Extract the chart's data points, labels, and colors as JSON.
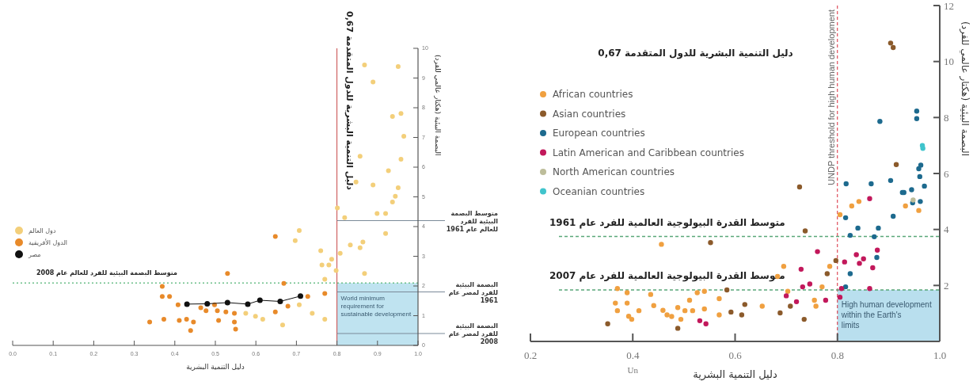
{
  "chart_data": [
    {
      "type": "scatter",
      "title": "0,67 دليل التنمية البشرية للدول المتقدمة",
      "xlabel": "دليل التنمية البشرية",
      "ylabel": "البصمة البيئية (هكتار عالمي للفرد)",
      "xlim": [
        0,
        1
      ],
      "ylim": [
        0,
        10
      ],
      "xticks": [
        {
          "value": 0,
          "label": "0.0"
        },
        {
          "value": 0.1,
          "label": "0.1"
        },
        {
          "value": 0.2,
          "label": "0.2"
        },
        {
          "value": 0.3,
          "label": "0.3"
        },
        {
          "value": 0.4,
          "label": "0.4"
        },
        {
          "value": 0.5,
          "label": "0.5"
        },
        {
          "value": 0.6,
          "label": "0.6"
        },
        {
          "value": 0.7,
          "label": "0.7"
        },
        {
          "value": 0.8,
          "label": "0.8"
        },
        {
          "value": 0.9,
          "label": "0.9"
        },
        {
          "value": 1,
          "label": "1.0"
        }
      ],
      "yticks": [
        0,
        1,
        2,
        3,
        4,
        5,
        6,
        7,
        8,
        9,
        10
      ],
      "legend": "left",
      "marker": "circle",
      "series": [
        {
          "name": "دول العالم",
          "color": "#f3cf7a",
          "type": "scatter",
          "x": [
            0.868,
            0.951,
            0.889,
            0.937,
            0.958,
            0.965,
            0.857,
            0.958,
            0.927,
            0.951,
            0.944,
            0.937,
            0.889,
            0.847,
            0.899,
            0.92,
            0.92,
            0.819,
            0.801,
            0.833,
            0.857,
            0.864,
            0.808,
            0.787,
            0.763,
            0.78,
            0.798,
            0.868,
            0.707,
            0.697,
            0.76,
            0.739,
            0.666,
            0.617,
            0.599,
            0.575,
            0.707,
            0.77,
            0.77
          ],
          "values": [
            9.44,
            9.39,
            8.87,
            7.71,
            7.81,
            7.04,
            6.37,
            6.27,
            5.88,
            5.31,
            5.02,
            4.83,
            5.4,
            5.5,
            4.44,
            4.44,
            3.77,
            4.3,
            4.63,
            3.38,
            3.29,
            3.48,
            3.1,
            2.9,
            2.71,
            2.71,
            2.52,
            2.42,
            3.87,
            3.53,
            3.19,
            1.08,
            0.69,
            0.88,
            0.98,
            1.08,
            1.37,
            0.88,
            2.23
          ]
        },
        {
          "name": "الدول الأفريقية",
          "color": "#e88a2a",
          "type": "scatter",
          "x": [
            0.369,
            0.373,
            0.387,
            0.338,
            0.408,
            0.411,
            0.429,
            0.446,
            0.439,
            0.464,
            0.477,
            0.498,
            0.505,
            0.526,
            0.53,
            0.508,
            0.547,
            0.55,
            0.547,
            0.648,
            0.648,
            0.669,
            0.679,
            0.728,
            0.77,
            0.369
          ],
          "values": [
            1.65,
            0.88,
            1.65,
            0.79,
            1.37,
            0.84,
            0.88,
            0.79,
            0.5,
            1.27,
            1.17,
            1.37,
            1.17,
            1.13,
            2.42,
            0.84,
            0.79,
            0.55,
            1.08,
            1.13,
            3.67,
            2.09,
            1.32,
            1.65,
            1.75,
            1.99
          ]
        },
        {
          "name": "مصر",
          "color": "#111111",
          "type": "line",
          "x": [
            0.43,
            0.48,
            0.53,
            0.58,
            0.61,
            0.66,
            0.71
          ],
          "values": [
            1.39,
            1.4,
            1.44,
            1.39,
            1.52,
            1.48,
            1.66
          ]
        }
      ],
      "ref_lines": [
        {
          "axis": "x",
          "value": 0.8,
          "color": "#c84848",
          "line_style": "solid"
        },
        {
          "axis": "y",
          "value": 2.1,
          "label": "متوسط البصمة البيئية للفرد للعالم عام 2008",
          "color": "#6cbf8a",
          "line_style": "dotted"
        },
        {
          "axis": "y",
          "value": 4.2,
          "label": "متوسط البصمة البيئية للفرد للعالم عام 1961",
          "color": "#7a8a99",
          "line_style": "solid"
        },
        {
          "axis": "y",
          "value": 1.8,
          "label": "البصمة البيئية للفرد لمصر عام 1961",
          "color": "#7a8a99",
          "line_style": "solid"
        },
        {
          "axis": "y",
          "value": 0.4,
          "label": "البصمة البيئية للفرد لمصر عام 2008",
          "color": "#7a8a99",
          "line_style": "solid"
        }
      ],
      "bands": [
        {
          "axis": "y",
          "from": 0,
          "to": 2.1,
          "label": "World minimum requirement for sustainable development",
          "color": "#bfe3f0"
        }
      ]
    },
    {
      "type": "scatter",
      "title": "0,67 دليل التنمية البشرية للدول المتقدمة",
      "xlabel": "دليل التنمية البشرية",
      "ylabel": "البصمة البيئية (هكتار عالمي للفرد)",
      "xlim": [
        0.2,
        1
      ],
      "ylim": [
        0,
        12
      ],
      "xticks": [
        {
          "value": 0.2,
          "label": "0.2"
        },
        {
          "value": 0.4,
          "label": "0.4"
        },
        {
          "value": 0.6,
          "label": "0.6"
        },
        {
          "value": 0.8,
          "label": "0.8"
        },
        {
          "value": 1,
          "label": "1.0"
        }
      ],
      "yticks": [
        2,
        4,
        6,
        8,
        10,
        12
      ],
      "legend": "top left",
      "marker": "circle",
      "annotations": [
        "Un"
      ],
      "series": [
        {
          "name": "African countries",
          "color": "#f0a040",
          "type": "scatter",
          "x": [
            0.37,
            0.366,
            0.37,
            0.389,
            0.389,
            0.392,
            0.398,
            0.412,
            0.435,
            0.441,
            0.456,
            0.459,
            0.467,
            0.476,
            0.488,
            0.494,
            0.502,
            0.511,
            0.517,
            0.526,
            0.54,
            0.54,
            0.569,
            0.569,
            0.653,
            0.683,
            0.695,
            0.703,
            0.755,
            0.758,
            0.77,
            0.785,
            0.828,
            0.842,
            0.933,
            0.959,
            0.805
          ],
          "values": [
            1.89,
            1.37,
            1.1,
            1.74,
            1.37,
            0.9,
            0.79,
            1.1,
            1.68,
            1.28,
            3.47,
            1.11,
            0.95,
            0.89,
            1.21,
            0.79,
            1.1,
            1.47,
            1.1,
            1.74,
            1.79,
            1.16,
            1.53,
            0.95,
            1.26,
            2.32,
            2.68,
            1.79,
            1.47,
            1.26,
            1.95,
            2.68,
            4.84,
            5.0,
            4.84,
            4.68,
            4.53
          ]
        },
        {
          "name": "Asian countries",
          "color": "#8b5a2b",
          "type": "scatter",
          "x": [
            0.351,
            0.488,
            0.552,
            0.584,
            0.592,
            0.613,
            0.619,
            0.688,
            0.708,
            0.735,
            0.737,
            0.78,
            0.797,
            0.726,
            0.904,
            0.909,
            0.915
          ],
          "values": [
            0.63,
            0.47,
            3.53,
            1.84,
            1.05,
            0.95,
            1.32,
            1.02,
            1.26,
            0.79,
            3.95,
            2.42,
            2.89,
            5.52,
            10.66,
            10.5,
            6.32
          ]
        },
        {
          "name": "European countries",
          "color": "#1d6a8e",
          "type": "scatter",
          "x": [
            0.817,
            0.866,
            0.883,
            0.904,
            0.955,
            0.955,
            0.959,
            0.963,
            0.961,
            0.97,
            0.93,
            0.816,
            0.84,
            0.88,
            0.872,
            0.825,
            0.909,
            0.877,
            0.825,
            0.816,
            0.927,
            0.947,
            0.962,
            0.945
          ],
          "values": [
            5.63,
            5.63,
            7.86,
            5.75,
            8.23,
            7.96,
            6.17,
            6.3,
            5.89,
            5.55,
            5.32,
            4.42,
            4.05,
            4.05,
            3.74,
            3.79,
            4.47,
            3.0,
            2.42,
            1.95,
            5.32,
            4.95,
            5.0,
            5.42
          ]
        },
        {
          "name": "Latin American and Caribbean countries",
          "color": "#c2185b",
          "type": "scatter",
          "x": [
            0.761,
            0.729,
            0.732,
            0.746,
            0.7,
            0.72,
            0.777,
            0.805,
            0.808,
            0.814,
            0.837,
            0.851,
            0.843,
            0.869,
            0.878,
            0.863,
            0.531,
            0.543,
            0.863
          ],
          "values": [
            3.21,
            2.58,
            1.95,
            2.05,
            1.63,
            1.42,
            1.47,
            1.58,
            1.89,
            2.84,
            3.1,
            2.95,
            2.79,
            2.63,
            3.26,
            1.89,
            0.74,
            0.63,
            5.1
          ]
        },
        {
          "name": "North American countries",
          "color": "#bdbd9a",
          "type": "scatter",
          "x": [
            0.948
          ],
          "values": [
            5.05
          ]
        },
        {
          "name": "Oceanian countries",
          "color": "#40c4cc",
          "type": "scatter",
          "x": [
            0.967,
            0.966
          ],
          "values": [
            6.9,
            7.0
          ]
        }
      ],
      "ref_lines": [
        {
          "axis": "x",
          "value": 0.8,
          "label": "UNDP threshold for high human development",
          "color": "#d8283a",
          "line_style": "dashed"
        },
        {
          "axis": "y",
          "value": 3.75,
          "label": "متوسط القدرة البيولوجية العالمية للفرد عام 1961",
          "color": "#5aa77a",
          "line_style": "dashed"
        },
        {
          "axis": "y",
          "value": 1.84,
          "label": "متوسط القدرة البيولوجية العالمية للفرد عام 2007",
          "color": "#5aa77a",
          "line_style": "dashed"
        }
      ],
      "bands": [
        {
          "axis": "y",
          "from": 0,
          "to": 1.84,
          "label": "High human development within the Earth's limits",
          "color": "#b9dfee"
        }
      ]
    }
  ]
}
